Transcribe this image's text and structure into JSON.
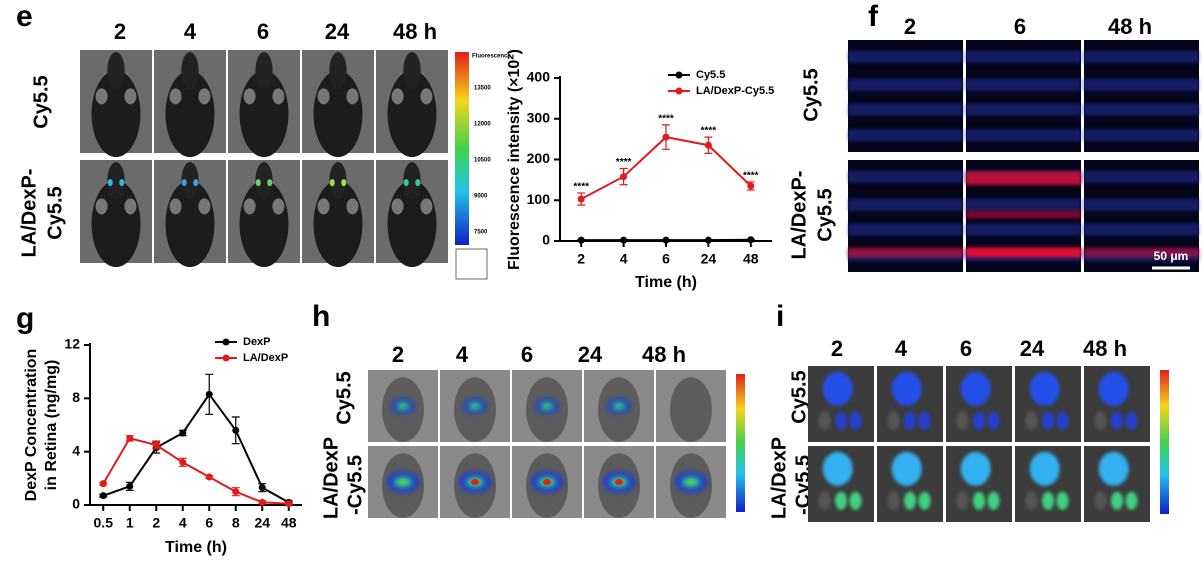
{
  "panels": {
    "e": {
      "letter": "e",
      "columns": [
        "2",
        "4",
        "6",
        "24",
        "48 h"
      ],
      "rows": [
        [
          "Cy5.5"
        ],
        [
          "LA/DexP-",
          "Cy5.5"
        ]
      ],
      "colorbar": {
        "title": "Fluorescence",
        "ticks": [
          13500,
          12000,
          10500,
          9000,
          7500
        ]
      }
    },
    "f": {
      "letter": "f",
      "columns": [
        "2",
        "6",
        "48 h"
      ],
      "rows": [
        [
          "Cy5.5"
        ],
        [
          "LA/DexP-",
          "Cy5.5"
        ]
      ],
      "scale_bar": "50 μm"
    },
    "g": {
      "letter": "g"
    },
    "h": {
      "letter": "h",
      "columns": [
        "2",
        "4",
        "6",
        "24",
        "48 h"
      ],
      "rows": [
        [
          "Cy5.5"
        ],
        [
          "LA/DexP",
          "-Cy5.5"
        ]
      ]
    },
    "i": {
      "letter": "i",
      "columns": [
        "2",
        "4",
        "6",
        "24",
        "48 h"
      ],
      "rows": [
        [
          "Cy5.5"
        ],
        [
          "LA/DexP",
          "-Cy5.5"
        ]
      ]
    }
  },
  "chart_data": [
    {
      "type": "line",
      "y_label": [
        "Fluorescence intensity (×10²)"
      ],
      "x_label": "Time (h)",
      "categories": [
        "2",
        "4",
        "6",
        "24",
        "48"
      ],
      "series": [
        {
          "name": "Cy5.5",
          "color": "#000000",
          "values": [
            2,
            2,
            2,
            2,
            3
          ],
          "errors": [
            1,
            1,
            1,
            1,
            1
          ]
        },
        {
          "name": "LA/DexP-Cy5.5",
          "color": "#e31a1c",
          "values": [
            103,
            158,
            255,
            235,
            135
          ],
          "errors": [
            15,
            20,
            30,
            20,
            10
          ]
        }
      ],
      "annotations": [
        "****",
        "****",
        "****",
        "****",
        "****"
      ],
      "ylim": [
        0,
        400
      ],
      "yticks": [
        0,
        100,
        200,
        300,
        400
      ],
      "legend": "upper right"
    },
    {
      "type": "line",
      "y_label": [
        "DexP Concentration",
        "in Retina (ng/mg)"
      ],
      "x_label": "Time (h)",
      "categories": [
        "0.5",
        "1",
        "2",
        "4",
        "6",
        "8",
        "24",
        "48"
      ],
      "series": [
        {
          "name": "DexP",
          "color": "#000000",
          "values": [
            0.7,
            1.4,
            4.3,
            5.4,
            8.3,
            5.6,
            1.3,
            0.2
          ],
          "errors": [
            0.1,
            0.3,
            0.4,
            0.2,
            1.5,
            1.0,
            0.3,
            0.1
          ]
        },
        {
          "name": "LA/DexP",
          "color": "#e31a1c",
          "values": [
            1.6,
            5.0,
            4.5,
            3.2,
            2.1,
            1.0,
            0.2,
            0.1
          ],
          "errors": [
            0.1,
            0.2,
            0.3,
            0.3,
            0.1,
            0.3,
            0.1,
            0.05
          ]
        }
      ],
      "ylim": [
        0,
        12
      ],
      "yticks": [
        0,
        4,
        8,
        12
      ],
      "legend": "upper right"
    }
  ]
}
